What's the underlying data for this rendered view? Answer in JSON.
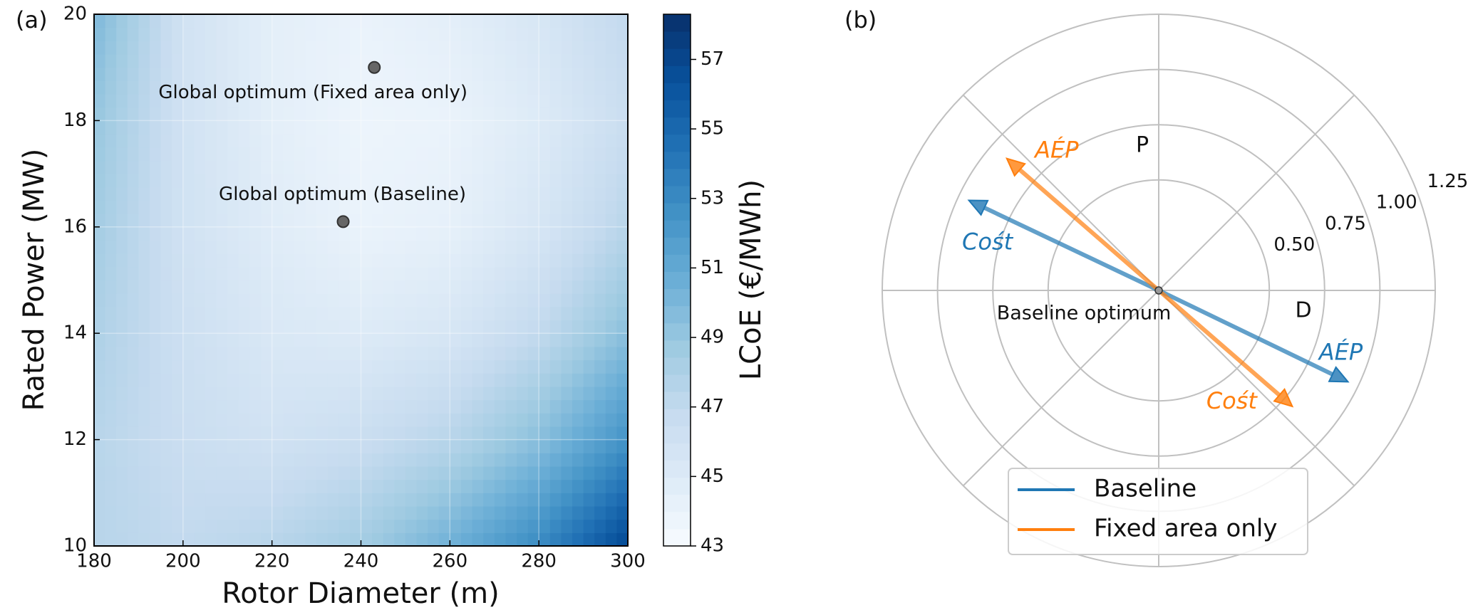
{
  "chart_data": [
    {
      "type": "contour",
      "panel": "(a)",
      "xlabel": "Rotor Diameter (m)",
      "ylabel": "Rated Power (MW)",
      "xlim": [
        180,
        300
      ],
      "xticks": [
        180,
        200,
        220,
        240,
        260,
        280,
        300
      ],
      "ylim": [
        10,
        20
      ],
      "yticks": [
        10,
        12,
        14,
        16,
        18,
        20
      ],
      "grid": true,
      "grid_x": [
        180,
        200,
        220,
        240,
        260,
        280,
        300
      ],
      "grid_y": [
        10,
        12,
        14,
        16,
        18,
        20
      ],
      "z": [
        [
          47.5,
          47,
          47.5,
          48.5,
          50.5,
          53,
          57
        ],
        [
          47.5,
          46.5,
          46,
          46.5,
          47.5,
          49.5,
          52.5
        ],
        [
          48,
          46.3,
          45.3,
          45,
          45.5,
          47,
          49.5
        ],
        [
          48.5,
          46,
          44.8,
          44,
          44.3,
          45.5,
          47.5
        ],
        [
          49,
          46,
          44.5,
          43.8,
          44,
          45,
          46.5
        ],
        [
          50,
          46,
          44.5,
          44,
          44.5,
          45.5,
          47
        ]
      ],
      "colormap": [
        "#f7fbff",
        "#deebf7",
        "#c6dbef",
        "#9ecae1",
        "#6baed6",
        "#4292c6",
        "#2171b5",
        "#08519c",
        "#08306b"
      ],
      "colorbar_label": "LCoE (€/MWh)",
      "clim": [
        43,
        58.3
      ],
      "cticks": [
        43,
        45,
        47,
        49,
        51,
        53,
        55,
        57
      ],
      "points": [
        {
          "label": "Global optimum (Fixed area only)",
          "x": 243,
          "y": 19
        },
        {
          "label": "Global optimum (Baseline)",
          "x": 236,
          "y": 16.1
        }
      ],
      "point_color": "#666666"
    },
    {
      "type": "polar",
      "panel": "(b)",
      "rlim": [
        0,
        1.25
      ],
      "rticks": [
        {
          "value": 0.5,
          "label": "0.50"
        },
        {
          "value": 0.75,
          "label": "0.75"
        },
        {
          "value": 1.0,
          "label": "1.00"
        },
        {
          "value": 1.25,
          "label": "1.25"
        }
      ],
      "axis_labels": [
        "P",
        "D"
      ],
      "center_label": "Baseline optimum",
      "legend": "lower center",
      "series": [
        {
          "name": "Baseline",
          "color": "#1f77b4",
          "arrows": [
            {
              "label": "Cośt",
              "angle": 154.6,
              "r": 0.95
            },
            {
              "label": "AÉP",
              "angle": -25.8,
              "r": 0.95
            }
          ]
        },
        {
          "name": "Fixed area only",
          "color": "#ff7f0e",
          "arrows": [
            {
              "label": "AÉP",
              "angle": 139,
              "r": 0.91
            },
            {
              "label": "Cośt",
              "angle": -41,
              "r": 0.8
            }
          ]
        }
      ]
    }
  ]
}
